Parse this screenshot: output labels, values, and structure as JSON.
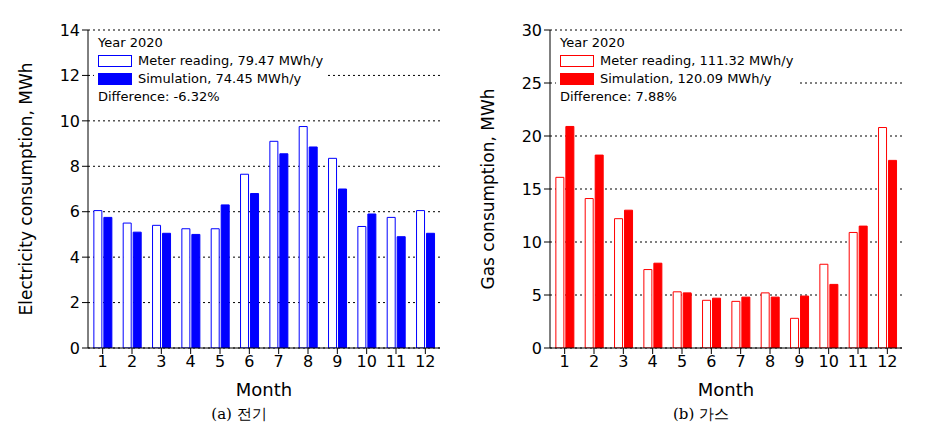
{
  "chart_data": [
    {
      "type": "bar",
      "title": "Year 2020",
      "annotations": [
        "Difference: -6.32%"
      ],
      "caption": "(a) 전기",
      "x_label": "Month",
      "y_label": "Electricity consumption, MWh",
      "categories": [
        "1",
        "2",
        "3",
        "4",
        "5",
        "6",
        "7",
        "8",
        "9",
        "10",
        "11",
        "12"
      ],
      "series": [
        {
          "name": "Meter reading, 79.47 MWh/y",
          "color": "#0000ff",
          "values": [
            6.05,
            5.5,
            5.4,
            5.25,
            5.25,
            7.65,
            9.1,
            9.75,
            8.35,
            5.35,
            5.75,
            6.05
          ]
        },
        {
          "name": "Simulation, 74.45 MWh/y",
          "color": "#0000ff",
          "values": [
            5.75,
            5.1,
            5.05,
            5.0,
            6.3,
            6.8,
            8.55,
            8.85,
            7.0,
            5.9,
            4.9,
            5.05
          ]
        }
      ],
      "ylim": [
        0,
        14
      ],
      "yticks": [
        0,
        2,
        4,
        6,
        8,
        10,
        12,
        14
      ],
      "grid": true,
      "legend": "upper left"
    },
    {
      "type": "bar",
      "title": "Year 2020",
      "annotations": [
        "Difference: 7.88%"
      ],
      "caption": "(b) 가스",
      "x_label": "Month",
      "y_label": "Gas consumption, MWh",
      "categories": [
        "1",
        "2",
        "3",
        "4",
        "5",
        "6",
        "7",
        "8",
        "9",
        "10",
        "11",
        "12"
      ],
      "series": [
        {
          "name": "Meter reading, 111.32 MWh/y",
          "color": "#ff0000",
          "values": [
            16.1,
            14.1,
            12.2,
            7.4,
            5.3,
            4.5,
            4.4,
            5.2,
            2.8,
            7.9,
            10.9,
            20.8
          ]
        },
        {
          "name": "Simulation, 120.09 MWh/y",
          "color": "#ff0000",
          "values": [
            20.9,
            18.2,
            13.0,
            8.0,
            5.2,
            4.7,
            4.8,
            4.8,
            4.9,
            6.0,
            11.5,
            17.7
          ]
        }
      ],
      "ylim": [
        0,
        30
      ],
      "yticks": [
        0,
        5,
        10,
        15,
        20,
        25,
        30
      ],
      "grid": true,
      "legend": "upper left"
    }
  ]
}
